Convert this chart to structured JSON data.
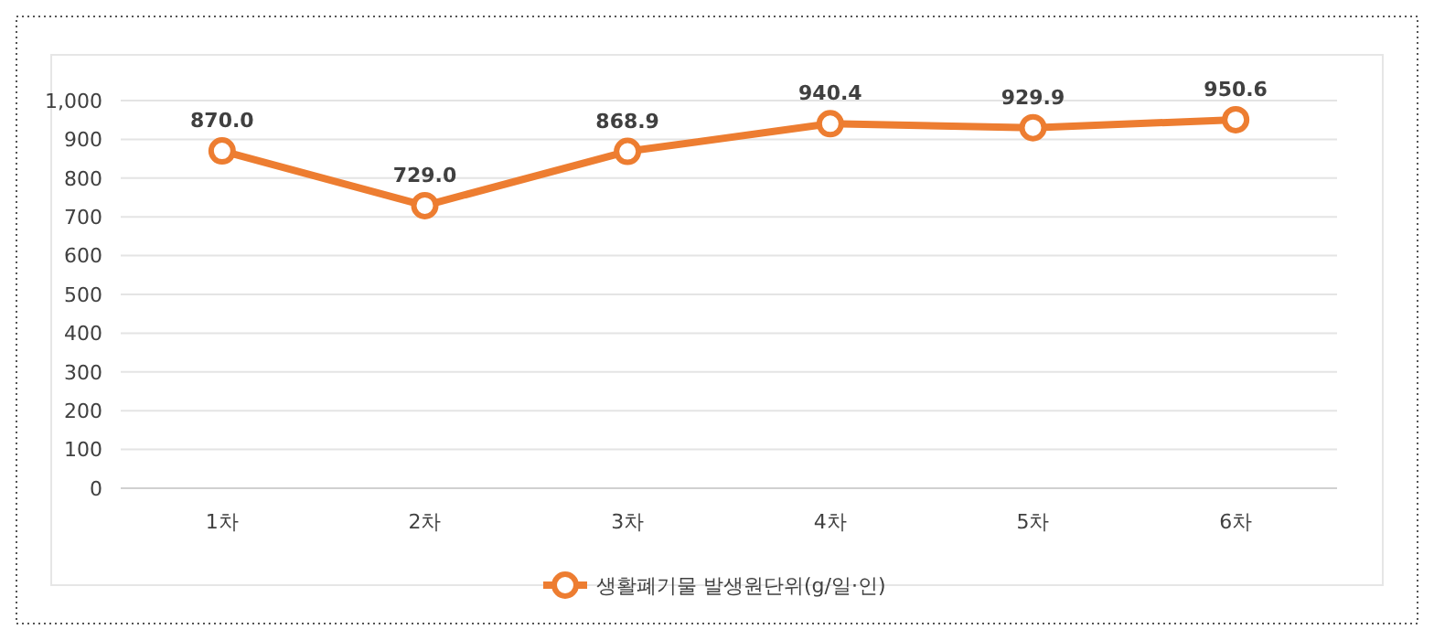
{
  "chart_data": {
    "type": "line",
    "categories": [
      "1차",
      "2차",
      "3차",
      "4차",
      "5차",
      "6차"
    ],
    "series": [
      {
        "name": "생활폐기물 발생원단위(g/일·인)",
        "color": "#ed7d31",
        "values": [
          870.0,
          729.0,
          868.9,
          940.4,
          929.9,
          950.6
        ],
        "value_labels": [
          "870.0",
          "729.0",
          "868.9",
          "940.4",
          "929.9",
          "950.6"
        ]
      }
    ],
    "ylim": [
      0,
      1000
    ],
    "yticks": [
      0,
      100,
      200,
      300,
      400,
      500,
      600,
      700,
      800,
      900,
      {
        "value": 1000,
        "label": "1,000"
      }
    ],
    "grid": "y",
    "legend": "bottom",
    "marker": "circle",
    "line_style": "solid"
  }
}
